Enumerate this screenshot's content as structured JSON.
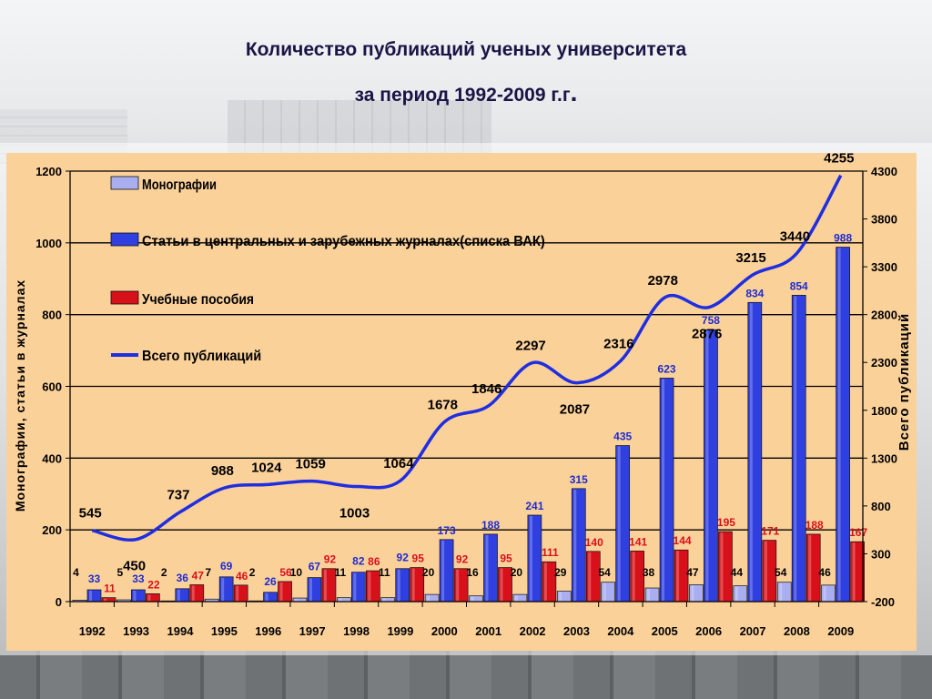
{
  "title": {
    "line1": "Количество публикаций ученых университета",
    "line2_text": "за период 1992-2009 г.г",
    "line2_dot": "."
  },
  "colors": {
    "background": "#fbd19a",
    "monographs": "#a9aef0",
    "articles": "#2f3fe0",
    "textbooks": "#d8101a",
    "total_line": "#1f2ee0",
    "title": "#1a1446"
  },
  "chart_data": {
    "type": "bar",
    "categories": [
      "1992",
      "1993",
      "1994",
      "1995",
      "1996",
      "1997",
      "1998",
      "1999",
      "2000",
      "2001",
      "2002",
      "2003",
      "2004",
      "2005",
      "2006",
      "2007",
      "2008",
      "2009"
    ],
    "series": [
      {
        "name": "Монографии",
        "type": "bar",
        "axis": "left",
        "values": [
          4,
          5,
          2,
          7,
          2,
          10,
          11,
          11,
          20,
          16,
          20,
          29,
          54,
          38,
          47,
          44,
          54,
          46
        ]
      },
      {
        "name": "Статьи в центральных и зарубежных журналах(списка ВАК)",
        "type": "bar",
        "axis": "left",
        "values": [
          33,
          33,
          36,
          69,
          26,
          67,
          82,
          92,
          173,
          188,
          241,
          315,
          435,
          623,
          758,
          834,
          854,
          988
        ]
      },
      {
        "name": "Учебные пособия",
        "type": "bar",
        "axis": "left",
        "values": [
          11,
          22,
          47,
          46,
          56,
          92,
          86,
          95,
          92,
          95,
          111,
          140,
          141,
          144,
          195,
          171,
          188,
          167
        ]
      },
      {
        "name": "Всего публикаций",
        "type": "line",
        "axis": "right",
        "values": [
          545,
          450,
          737,
          988,
          1024,
          1059,
          1003,
          1064,
          1678,
          1846,
          2297,
          2087,
          2316,
          2978,
          2876,
          3215,
          3440,
          4255
        ]
      }
    ],
    "ylabel": "Монографии, статьи в журналах",
    "y2label": "Всего публикаций",
    "ylim": [
      0,
      1200
    ],
    "y2lim": [
      -200,
      4300
    ],
    "yticks": [
      0,
      200,
      400,
      600,
      800,
      1000,
      1200
    ],
    "y2ticks": [
      -200,
      300,
      800,
      1300,
      1800,
      2300,
      2800,
      3300,
      3800,
      4300
    ],
    "legend_position": "top-left",
    "grid": "horizontal"
  }
}
